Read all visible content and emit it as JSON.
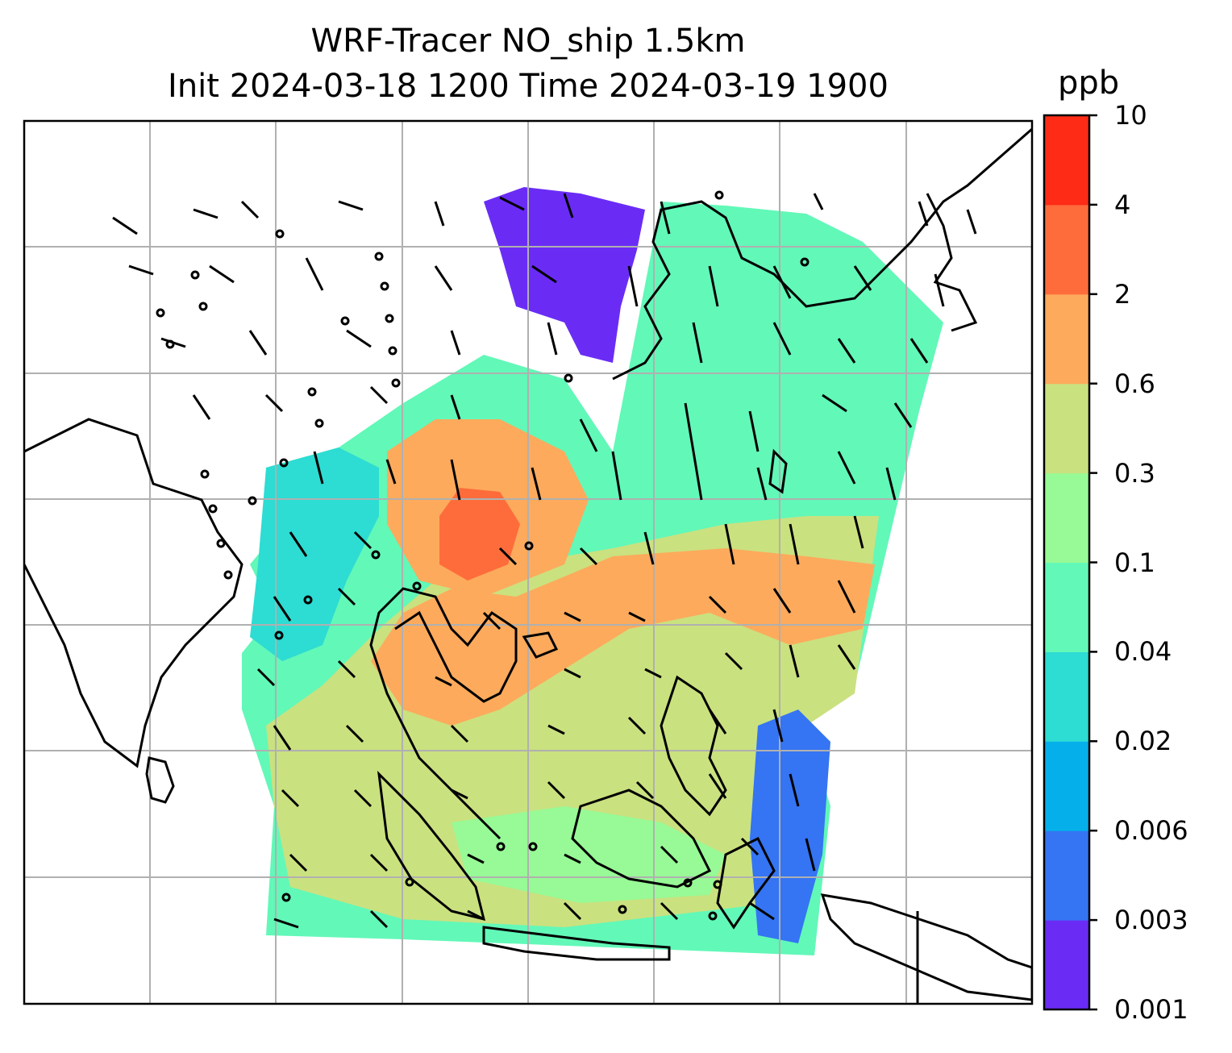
{
  "title_line1": "WRF-Tracer NO_ship 1.5km",
  "title_line2": "Init 2024-03-18 1200 Time 2024-03-19 1900",
  "colorbar": {
    "unit": "ppb",
    "levels": [
      "0.001",
      "0.003",
      "0.006",
      "0.02",
      "0.04",
      "0.1",
      "0.3",
      "0.6",
      "2",
      "4",
      "10"
    ],
    "colors": [
      "#6a2cf5",
      "#3574f3",
      "#05b0ea",
      "#2ddcd2",
      "#62f8b8",
      "#97fa96",
      "#cae17f",
      "#fdaa5c",
      "#fe6c3b",
      "#fe2b16"
    ]
  },
  "map": {
    "gridlines": "on",
    "coastlines": "on",
    "wind_barbs": "on"
  }
}
